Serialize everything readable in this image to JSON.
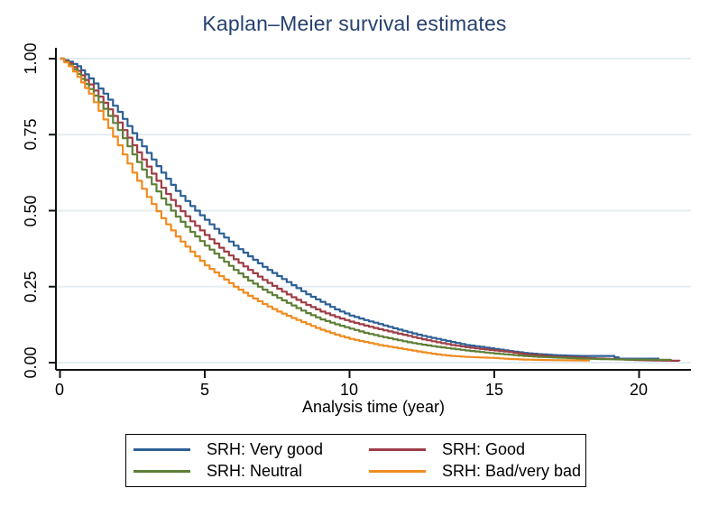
{
  "figure": {
    "background": "#FFFFFF",
    "title_color": "#26416F"
  },
  "chart_data": {
    "type": "line",
    "variant": "kaplan-meier-step",
    "title": "Kaplan–Meier survival estimates",
    "xlabel": "Analysis time (year)",
    "ylabel": "",
    "xlim": [
      0,
      21.8
    ],
    "ylim": [
      0,
      1.0
    ],
    "xticks": [
      0,
      5,
      10,
      15,
      20
    ],
    "xtick_labels": [
      "0",
      "5",
      "10",
      "15",
      "20"
    ],
    "yticks": [
      0,
      0.25,
      0.5,
      0.75,
      1
    ],
    "ytick_labels": [
      "0.00",
      "0.25",
      "0.50",
      "0.75",
      "1.00"
    ],
    "grid": {
      "horizontal": true,
      "vertical": false,
      "color": "#E4EEF2"
    },
    "axis_color": "#111111",
    "legend": {
      "position": "bottom",
      "columns": 2,
      "border_color": "#000000"
    },
    "series": [
      {
        "name": "SRH: Very good",
        "color": "#2D6096",
        "x": [
          0,
          0.3,
          0.6,
          1,
          1.5,
          2,
          2.5,
          3,
          3.5,
          4,
          4.5,
          5,
          5.5,
          6,
          6.5,
          7,
          7.5,
          8,
          8.5,
          9,
          9.5,
          10,
          10.5,
          11,
          11.5,
          12,
          12.5,
          13,
          13.5,
          14,
          14.5,
          15,
          15.5,
          16,
          16.5,
          17,
          17.5,
          18,
          19,
          19.3,
          20.7
        ],
        "y": [
          1,
          0.99,
          0.975,
          0.935,
          0.885,
          0.825,
          0.755,
          0.69,
          0.625,
          0.565,
          0.515,
          0.47,
          0.425,
          0.385,
          0.35,
          0.315,
          0.285,
          0.255,
          0.225,
          0.2,
          0.175,
          0.155,
          0.14,
          0.127,
          0.113,
          0.1,
          0.088,
          0.078,
          0.068,
          0.058,
          0.052,
          0.045,
          0.038,
          0.032,
          0.028,
          0.025,
          0.023,
          0.022,
          0.022,
          0.013,
          0.013
        ]
      },
      {
        "name": "SRH: Good",
        "color": "#9D3E46",
        "x": [
          0,
          0.3,
          0.6,
          1,
          1.5,
          2,
          2.5,
          3,
          3.5,
          4,
          4.5,
          5,
          5.5,
          6,
          6.5,
          7,
          7.5,
          8,
          8.5,
          9,
          9.5,
          10,
          10.5,
          11,
          11.5,
          12,
          12.5,
          13,
          13.5,
          14,
          14.5,
          15,
          15.5,
          16,
          16.5,
          17,
          17.5,
          18,
          18.5,
          19,
          19.5,
          20,
          20.5,
          21.4
        ],
        "y": [
          1,
          0.985,
          0.96,
          0.915,
          0.855,
          0.79,
          0.715,
          0.645,
          0.575,
          0.515,
          0.465,
          0.42,
          0.378,
          0.34,
          0.305,
          0.272,
          0.243,
          0.215,
          0.19,
          0.168,
          0.15,
          0.135,
          0.122,
          0.11,
          0.099,
          0.088,
          0.077,
          0.067,
          0.058,
          0.051,
          0.045,
          0.04,
          0.035,
          0.028,
          0.024,
          0.02,
          0.018,
          0.016,
          0.014,
          0.012,
          0.01,
          0.008,
          0.007,
          0.006
        ]
      },
      {
        "name": "SRH: Neutral",
        "color": "#5E7F36",
        "x": [
          0,
          0.3,
          0.6,
          1,
          1.5,
          2,
          2.5,
          3,
          3.5,
          4,
          4.5,
          5,
          5.5,
          6,
          6.5,
          7,
          7.5,
          8,
          8.5,
          9,
          9.5,
          10,
          10.5,
          11,
          11.5,
          12,
          12.5,
          13,
          13.5,
          14,
          14.5,
          15,
          15.5,
          16,
          16.5,
          17,
          17.5,
          18,
          18.5,
          19,
          19.5,
          20,
          21.1
        ],
        "y": [
          1,
          0.98,
          0.95,
          0.9,
          0.835,
          0.765,
          0.685,
          0.61,
          0.54,
          0.48,
          0.43,
          0.385,
          0.345,
          0.305,
          0.27,
          0.24,
          0.213,
          0.188,
          0.163,
          0.142,
          0.126,
          0.112,
          0.098,
          0.087,
          0.077,
          0.067,
          0.059,
          0.052,
          0.046,
          0.04,
          0.035,
          0.03,
          0.026,
          0.022,
          0.019,
          0.017,
          0.015,
          0.013,
          0.012,
          0.011,
          0.01,
          0.01,
          0.009
        ]
      },
      {
        "name": "SRH: Bad/very bad",
        "color": "#F08C21",
        "x": [
          0,
          0.3,
          0.6,
          1,
          1.5,
          2,
          2.5,
          3,
          3.5,
          4,
          4.5,
          5,
          5.5,
          6,
          6.5,
          7,
          7.5,
          8,
          8.5,
          9,
          9.5,
          10,
          10.5,
          11,
          11.5,
          12,
          12.5,
          13,
          13.5,
          14,
          14.5,
          15,
          15.5,
          16,
          16.5,
          17,
          18.3
        ],
        "y": [
          1,
          0.975,
          0.94,
          0.885,
          0.8,
          0.715,
          0.625,
          0.545,
          0.475,
          0.415,
          0.365,
          0.32,
          0.285,
          0.25,
          0.22,
          0.193,
          0.168,
          0.147,
          0.127,
          0.108,
          0.092,
          0.078,
          0.068,
          0.058,
          0.05,
          0.042,
          0.034,
          0.027,
          0.022,
          0.019,
          0.017,
          0.015,
          0.012,
          0.01,
          0.009,
          0.008,
          0.007
        ]
      }
    ]
  }
}
